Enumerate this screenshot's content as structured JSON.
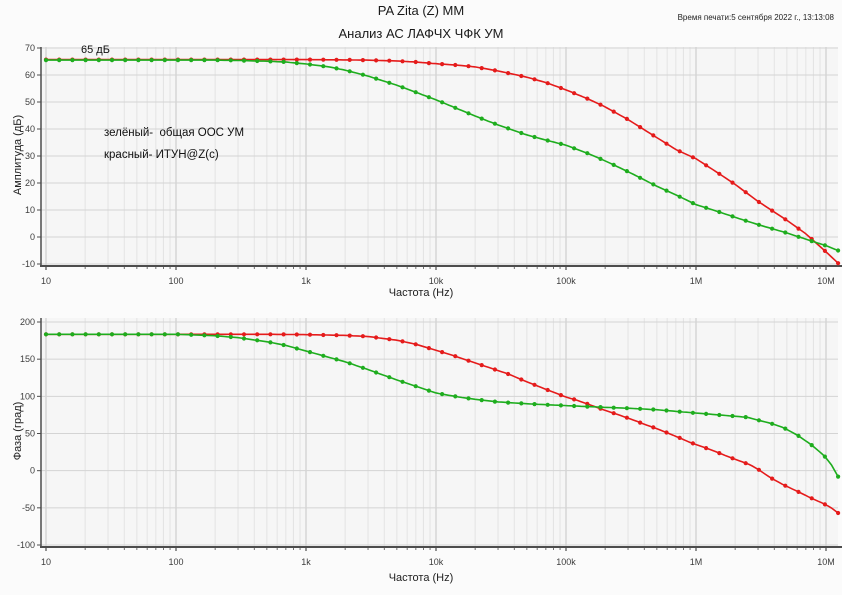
{
  "header": {
    "title": "PA Zita (Z) MM",
    "subtitle": "Анализ АС ЛАФЧХ ЧФК УМ",
    "printed": "Время печати:5 сентября 2022 г., 13:13:08"
  },
  "colors": {
    "green": "#1ead1e",
    "red": "#e51b1b",
    "grid_minor": "#e3e3e3",
    "grid_major": "#c6c6c6",
    "grid_horizontal": "#d4d4d4",
    "axis": "#4d4d4d",
    "plot_bg": "#f6f6f6",
    "page_bg": "#fbfbfb",
    "tick_text": "#3d3d3d"
  },
  "amplitude_chart": {
    "ylabel": "Амплитуда (дБ)",
    "xlabel": "Частота (Hz)",
    "annotation": "65 дБ",
    "legend": [
      "зелёный-  общая ООС УМ",
      "красный- ИТУН@Z(c)"
    ]
  },
  "phase_chart": {
    "ylabel": "Фаза (град)",
    "xlabel": "Частота (Hz)"
  },
  "chart_data": [
    {
      "type": "line",
      "title": "Анализ АС ЛАФЧХ ЧФК УМ — амплитуда",
      "xlabel": "Частота (Hz)",
      "ylabel": "Амплитуда (дБ)",
      "x_scale": "log",
      "x_range": [
        10,
        12400000
      ],
      "x_ticks": [
        {
          "value": 10,
          "label": "10"
        },
        {
          "value": 100,
          "label": "100"
        },
        {
          "value": 1000,
          "label": "1k"
        },
        {
          "value": 10000,
          "label": "10k"
        },
        {
          "value": 100000,
          "label": "100k"
        },
        {
          "value": 1000000,
          "label": "1M"
        },
        {
          "value": 10000000,
          "label": "10M"
        }
      ],
      "ylim": [
        -10,
        70
      ],
      "y_ticks": [
        70,
        60,
        50,
        40,
        30,
        20,
        10,
        0,
        -10
      ],
      "grid": true,
      "legend_position": "inside-top-left-text",
      "annotation": {
        "text": "65 дБ",
        "at_db": 65.5
      },
      "series": [
        {
          "name": "ИТУН@Z(c)",
          "color_key": "red",
          "points": [
            [
              10,
              65.7
            ],
            [
              1000,
              65.7
            ],
            [
              2000,
              65.6
            ],
            [
              3000,
              65.5
            ],
            [
              5000,
              65.2
            ],
            [
              7000,
              64.8
            ],
            [
              10000,
              64.2
            ],
            [
              15000,
              63.6
            ],
            [
              20000,
              63.0
            ],
            [
              30000,
              61.5
            ],
            [
              50000,
              59.2
            ],
            [
              70000,
              57.2
            ],
            [
              100000,
              54.5
            ],
            [
              150000,
              51.0
            ],
            [
              200000,
              48.2
            ],
            [
              300000,
              43.5
            ],
            [
              500000,
              36.8
            ],
            [
              700000,
              32.4
            ],
            [
              1000000,
              29.0
            ],
            [
              1500000,
              23.5
            ],
            [
              2000000,
              19.5
            ],
            [
              3000000,
              13.2
            ],
            [
              5000000,
              6.2
            ],
            [
              7000000,
              1.2
            ],
            [
              10000000,
              -5.5
            ],
            [
              12400000,
              -9.7
            ]
          ]
        },
        {
          "name": "общая ООС УМ",
          "color_key": "green",
          "points": [
            [
              10,
              65.5
            ],
            [
              100,
              65.5
            ],
            [
              200,
              65.5
            ],
            [
              300,
              65.4
            ],
            [
              500,
              65.1
            ],
            [
              700,
              64.8
            ],
            [
              1000,
              64.1
            ],
            [
              1500,
              63.0
            ],
            [
              2000,
              61.8
            ],
            [
              3000,
              59.6
            ],
            [
              5000,
              56.2
            ],
            [
              7000,
              53.6
            ],
            [
              10000,
              50.8
            ],
            [
              15000,
              47.3
            ],
            [
              20000,
              44.8
            ],
            [
              30000,
              41.5
            ],
            [
              50000,
              37.8
            ],
            [
              70000,
              35.9
            ],
            [
              100000,
              34.0
            ],
            [
              150000,
              30.8
            ],
            [
              200000,
              28.2
            ],
            [
              300000,
              24.2
            ],
            [
              500000,
              18.8
            ],
            [
              700000,
              15.6
            ],
            [
              1000000,
              12.0
            ],
            [
              1500000,
              9.3
            ],
            [
              2000000,
              7.3
            ],
            [
              3000000,
              4.6
            ],
            [
              5000000,
              1.5
            ],
            [
              7000000,
              -0.8
            ],
            [
              10000000,
              -3.2
            ],
            [
              12400000,
              -5.0
            ]
          ]
        }
      ]
    },
    {
      "type": "line",
      "title": "Анализ АС ЛАФЧХ ЧФК УМ — фаза",
      "xlabel": "Частота (Hz)",
      "ylabel": "Фаза (град)",
      "x_scale": "log",
      "x_range": [
        10,
        12400000
      ],
      "x_ticks": [
        {
          "value": 10,
          "label": "10"
        },
        {
          "value": 100,
          "label": "100"
        },
        {
          "value": 1000,
          "label": "1k"
        },
        {
          "value": 10000,
          "label": "10k"
        },
        {
          "value": 100000,
          "label": "100k"
        },
        {
          "value": 1000000,
          "label": "1M"
        },
        {
          "value": 10000000,
          "label": "10M"
        }
      ],
      "ylim": [
        -100,
        200
      ],
      "y_ticks": [
        200,
        150,
        100,
        50,
        0,
        -50,
        -100
      ],
      "grid": true,
      "legend_position": "none",
      "series": [
        {
          "name": "ИТУН@Z(c)",
          "color_key": "red",
          "points": [
            [
              10,
              183.5
            ],
            [
              500,
              183.5
            ],
            [
              1000,
              183.0
            ],
            [
              2000,
              182.0
            ],
            [
              3000,
              180.5
            ],
            [
              5000,
              175.5
            ],
            [
              7000,
              170.0
            ],
            [
              10000,
              162.0
            ],
            [
              13000,
              156.0
            ],
            [
              17000,
              149.0
            ],
            [
              22000,
              142.5
            ],
            [
              28000,
              136.5
            ],
            [
              36000,
              130.0
            ],
            [
              50000,
              119.5
            ],
            [
              70000,
              109.5
            ],
            [
              100000,
              99.0
            ],
            [
              120000,
              95.0
            ],
            [
              150000,
              89.0
            ],
            [
              190000,
              82.5
            ],
            [
              250000,
              75.5
            ],
            [
              320000,
              69.0
            ],
            [
              400000,
              62.5
            ],
            [
              500000,
              56.5
            ],
            [
              600000,
              51.0
            ],
            [
              750000,
              44.0
            ],
            [
              900000,
              38.0
            ],
            [
              1130000,
              32.0
            ],
            [
              1400000,
              26.0
            ],
            [
              1700000,
              20.0
            ],
            [
              2100000,
              14.0
            ],
            [
              2600000,
              8.0
            ],
            [
              3000000,
              2.0
            ],
            [
              3700000,
              -9.0
            ],
            [
              4700000,
              -19.0
            ],
            [
              5900000,
              -27.0
            ],
            [
              7500000,
              -36.0
            ],
            [
              9500000,
              -44.0
            ],
            [
              11000000,
              -50.0
            ],
            [
              12400000,
              -57.0
            ]
          ]
        },
        {
          "name": "общая ООС УМ",
          "color_key": "green",
          "points": [
            [
              10,
              183.5
            ],
            [
              100,
              183.5
            ],
            [
              200,
              181.5
            ],
            [
              300,
              179.0
            ],
            [
              500,
              173.5
            ],
            [
              700,
              168.5
            ],
            [
              1000,
              161.0
            ],
            [
              1500,
              152.5
            ],
            [
              2000,
              146.5
            ],
            [
              3000,
              136.0
            ],
            [
              5000,
              122.0
            ],
            [
              7000,
              113.5
            ],
            [
              10000,
              104.5
            ],
            [
              15000,
              99.0
            ],
            [
              20000,
              96.0
            ],
            [
              30000,
              92.5
            ],
            [
              50000,
              90.0
            ],
            [
              100000,
              87.5
            ],
            [
              200000,
              85.2
            ],
            [
              300000,
              84.0
            ],
            [
              500000,
              82.0
            ],
            [
              700000,
              79.8
            ],
            [
              1000000,
              77.5
            ],
            [
              1500000,
              75.0
            ],
            [
              2000000,
              73.2
            ],
            [
              2500000,
              71.8
            ],
            [
              3000000,
              68.0
            ],
            [
              3700000,
              64.0
            ],
            [
              4700000,
              58.0
            ],
            [
              6000000,
              48.0
            ],
            [
              7700000,
              35.0
            ],
            [
              9700000,
              20.0
            ],
            [
              11000000,
              8.0
            ],
            [
              12400000,
              -8.0
            ]
          ]
        }
      ]
    }
  ]
}
